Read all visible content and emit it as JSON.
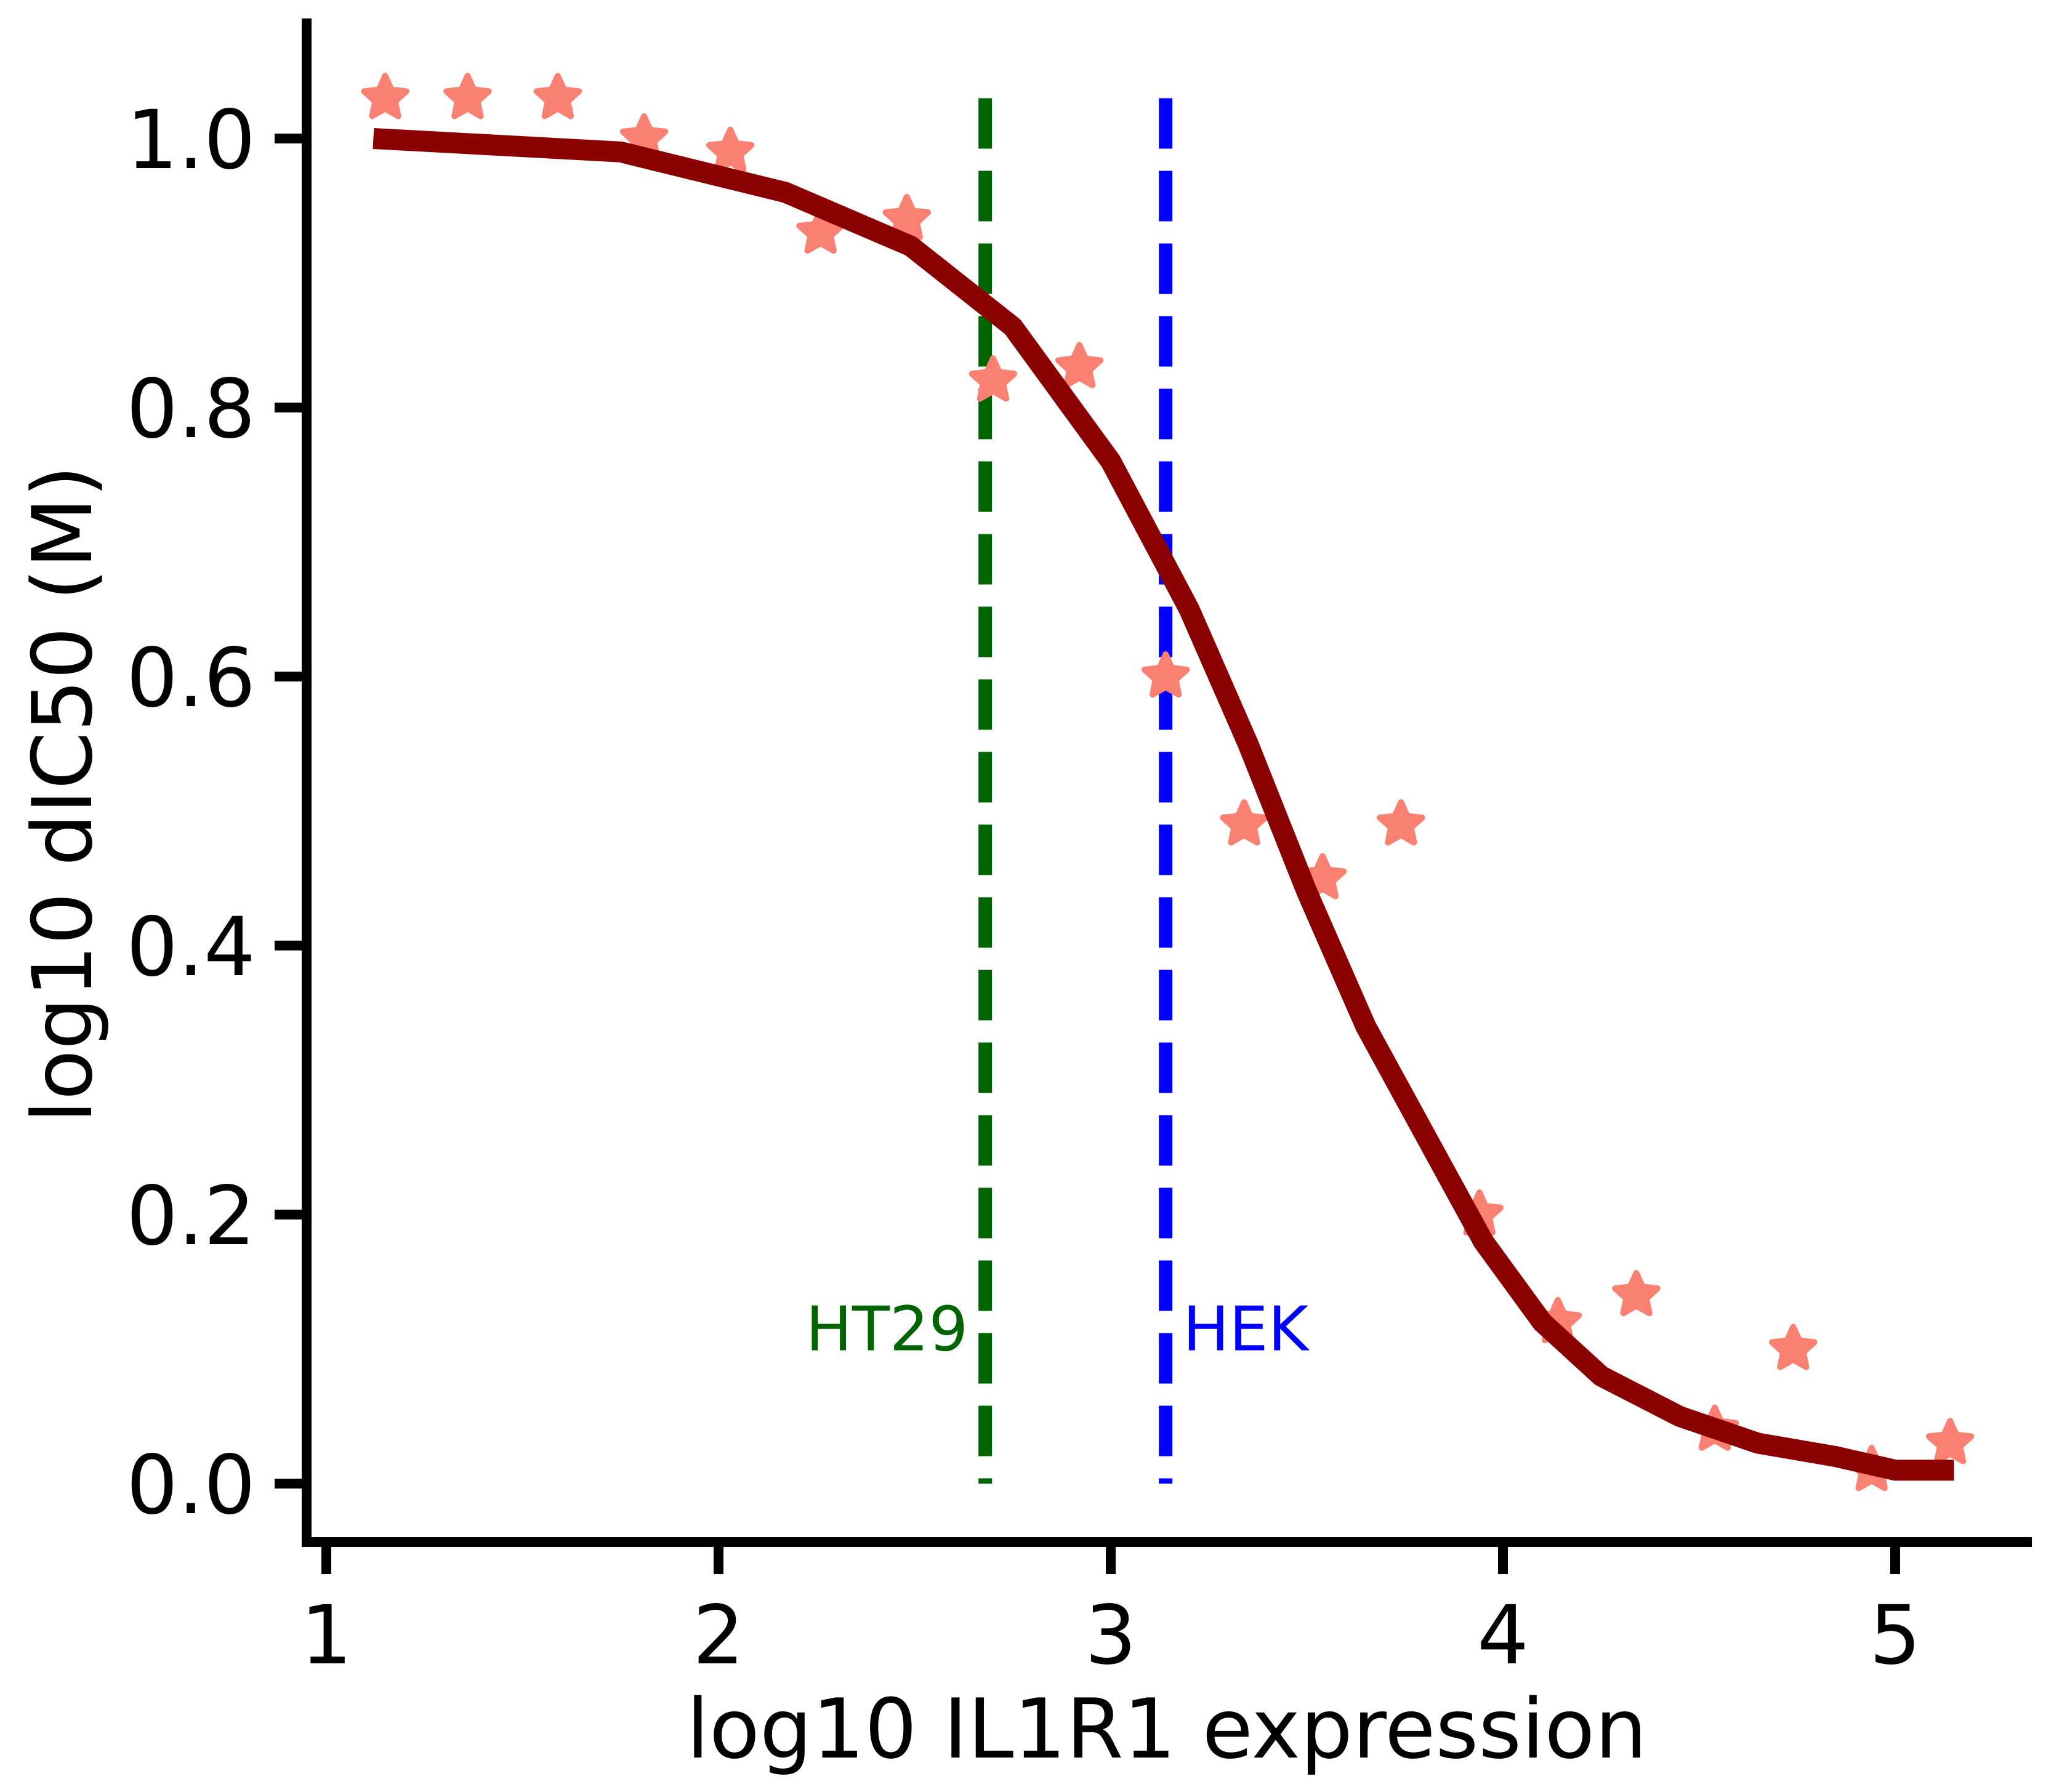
{
  "chart_data": {
    "type": "scatter",
    "title": "",
    "xlabel": "log10 IL1R1 expression",
    "ylabel": "log10 dIC50 (M)",
    "xlim": [
      0.95,
      5.32
    ],
    "ylim": [
      -0.085,
      1.18
    ],
    "x_ticks": [
      1,
      2,
      3,
      4,
      5
    ],
    "x_tick_labels": [
      "1",
      "2",
      "3",
      "4",
      "5"
    ],
    "y_ticks": [
      0.0,
      0.2,
      0.4,
      0.6,
      0.8,
      1.0
    ],
    "y_tick_labels": [
      "0.0",
      "0.2",
      "0.4",
      "0.6",
      "0.8",
      "1.0"
    ],
    "grid": false,
    "legend": "none",
    "points": {
      "marker": "star",
      "color": "#fa8072",
      "x": [
        1.15,
        1.36,
        1.59,
        1.81,
        2.03,
        2.26,
        2.48,
        2.7,
        2.92,
        3.14,
        3.34,
        3.54,
        3.74,
        3.94,
        4.14,
        4.34,
        4.54,
        4.74,
        4.94,
        5.14
      ],
      "y": [
        1.03,
        1.03,
        1.03,
        1.0,
        0.99,
        0.93,
        0.94,
        0.82,
        0.83,
        0.6,
        0.49,
        0.45,
        0.49,
        0.2,
        0.12,
        0.14,
        0.04,
        0.1,
        0.01,
        0.03
      ]
    },
    "fit_curve": {
      "color": "#8b0000",
      "x": [
        1.12,
        1.75,
        2.17,
        2.49,
        2.75,
        3.0,
        3.2,
        3.35,
        3.5,
        3.65,
        3.8,
        3.95,
        4.1,
        4.25,
        4.45,
        4.65,
        4.85,
        5.0,
        5.15
      ],
      "y": [
        1.0,
        0.99,
        0.96,
        0.92,
        0.86,
        0.76,
        0.65,
        0.55,
        0.44,
        0.34,
        0.26,
        0.18,
        0.12,
        0.08,
        0.05,
        0.03,
        0.02,
        0.01,
        0.01
      ]
    },
    "vlines": [
      {
        "x": 2.68,
        "label": "HT29",
        "color": "#006400",
        "label_side": "left",
        "label_y": 0.115
      },
      {
        "x": 3.14,
        "label": "HEK",
        "color": "#0000ff",
        "label_side": "right",
        "label_y": 0.115
      }
    ],
    "vline_span": [
      0.0,
      1.03
    ]
  }
}
